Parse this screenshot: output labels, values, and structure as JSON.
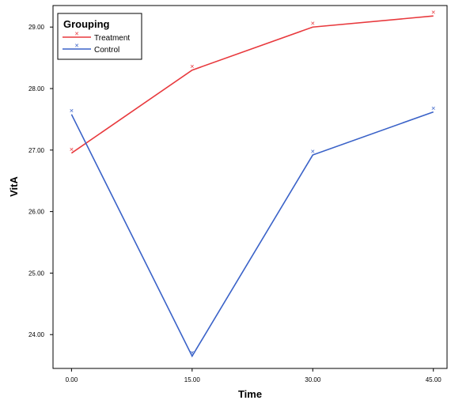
{
  "chart_data": {
    "type": "line",
    "xlabel": "Time",
    "ylabel": "VitA",
    "x": [
      0,
      15,
      30,
      45
    ],
    "x_tick_labels": [
      "0.00",
      "15.00",
      "30.00",
      "45.00"
    ],
    "y_tick_labels": [
      "24.00",
      "25.00",
      "26.00",
      "27.00",
      "28.00",
      "29.00"
    ],
    "y_ticks": [
      24,
      25,
      26,
      27,
      28,
      29
    ],
    "xlim": [
      -2.3,
      46.7
    ],
    "ylim": [
      23.45,
      29.35
    ],
    "grid": false,
    "legend": {
      "title": "Grouping",
      "placement": "top-left"
    },
    "marker_glyph": "✕",
    "series": [
      {
        "name": "Treatment",
        "color": "#e8393d",
        "values": [
          26.95,
          28.3,
          29.0,
          29.18
        ]
      },
      {
        "name": "Control",
        "color": "#3a62c8",
        "values": [
          27.58,
          23.65,
          26.92,
          27.62
        ]
      }
    ]
  }
}
